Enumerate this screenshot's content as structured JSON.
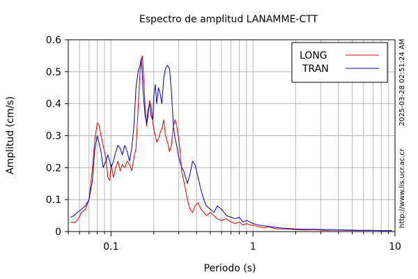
{
  "chart_data": {
    "type": "line",
    "title": "Espectro de amplitud LANAMME-CTT",
    "xlabel": "Periodo (s)",
    "ylabel": "Amplitud (cm/s)",
    "xscale": "log",
    "xlim": [
      0.05,
      10
    ],
    "ylim": [
      0,
      0.6
    ],
    "xticks": [
      0.1,
      1,
      10
    ],
    "xtick_labels": [
      "0.1",
      "1",
      "10"
    ],
    "yticks": [
      0,
      0.1,
      0.2,
      0.3,
      0.4,
      0.5,
      0.6
    ],
    "ytick_labels": [
      "0",
      "0.1",
      "0.2",
      "0.3",
      "0.4",
      "0.5",
      "0.6"
    ],
    "grid": true,
    "legend": "top-right",
    "series": [
      {
        "name": "LONG",
        "color": "#dd0000",
        "x": [
          0.052,
          0.055,
          0.058,
          0.062,
          0.066,
          0.07,
          0.074,
          0.077,
          0.08,
          0.082,
          0.085,
          0.088,
          0.092,
          0.095,
          0.098,
          0.1,
          0.104,
          0.108,
          0.112,
          0.116,
          0.12,
          0.125,
          0.13,
          0.135,
          0.14,
          0.145,
          0.15,
          0.155,
          0.16,
          0.163,
          0.166,
          0.168,
          0.171,
          0.174,
          0.178,
          0.182,
          0.187,
          0.192,
          0.197,
          0.2,
          0.205,
          0.21,
          0.216,
          0.222,
          0.228,
          0.235,
          0.242,
          0.25,
          0.258,
          0.266,
          0.275,
          0.283,
          0.29,
          0.297,
          0.305,
          0.315,
          0.325,
          0.335,
          0.345,
          0.36,
          0.375,
          0.39,
          0.41,
          0.43,
          0.45,
          0.47,
          0.5,
          0.53,
          0.56,
          0.6,
          0.65,
          0.7,
          0.75,
          0.8,
          0.85,
          0.9,
          0.95,
          1.0,
          1.1,
          1.2,
          1.3,
          1.4,
          1.5,
          1.7,
          2.0,
          2.3,
          2.7,
          3.2,
          3.8,
          4.5,
          5.5,
          6.5,
          8.0,
          9.5
        ],
        "y": [
          0.03,
          0.028,
          0.035,
          0.06,
          0.07,
          0.1,
          0.2,
          0.29,
          0.34,
          0.335,
          0.3,
          0.27,
          0.23,
          0.17,
          0.16,
          0.21,
          0.17,
          0.2,
          0.22,
          0.19,
          0.21,
          0.2,
          0.22,
          0.21,
          0.19,
          0.23,
          0.26,
          0.38,
          0.5,
          0.53,
          0.55,
          0.52,
          0.46,
          0.38,
          0.33,
          0.36,
          0.41,
          0.39,
          0.34,
          0.32,
          0.3,
          0.28,
          0.29,
          0.31,
          0.32,
          0.35,
          0.3,
          0.28,
          0.25,
          0.27,
          0.33,
          0.35,
          0.33,
          0.3,
          0.26,
          0.19,
          0.16,
          0.13,
          0.1,
          0.07,
          0.06,
          0.08,
          0.09,
          0.07,
          0.06,
          0.05,
          0.06,
          0.05,
          0.04,
          0.035,
          0.04,
          0.03,
          0.025,
          0.03,
          0.02,
          0.025,
          0.02,
          0.02,
          0.015,
          0.012,
          0.015,
          0.01,
          0.008,
          0.008,
          0.006,
          0.005,
          0.006,
          0.004,
          0.005,
          0.004,
          0.003,
          0.004,
          0.003,
          0.003
        ]
      },
      {
        "name": "TRAN",
        "color": "#0000cc",
        "x": [
          0.052,
          0.055,
          0.058,
          0.062,
          0.066,
          0.07,
          0.074,
          0.077,
          0.08,
          0.082,
          0.085,
          0.088,
          0.092,
          0.095,
          0.098,
          0.1,
          0.104,
          0.108,
          0.112,
          0.116,
          0.12,
          0.125,
          0.13,
          0.135,
          0.14,
          0.145,
          0.15,
          0.155,
          0.16,
          0.163,
          0.166,
          0.168,
          0.171,
          0.174,
          0.178,
          0.182,
          0.187,
          0.192,
          0.197,
          0.2,
          0.205,
          0.21,
          0.216,
          0.222,
          0.228,
          0.235,
          0.242,
          0.25,
          0.258,
          0.266,
          0.275,
          0.283,
          0.29,
          0.297,
          0.305,
          0.315,
          0.325,
          0.335,
          0.345,
          0.36,
          0.375,
          0.39,
          0.41,
          0.43,
          0.45,
          0.47,
          0.5,
          0.53,
          0.56,
          0.6,
          0.65,
          0.7,
          0.75,
          0.8,
          0.85,
          0.9,
          0.95,
          1.0,
          1.1,
          1.2,
          1.3,
          1.4,
          1.5,
          1.7,
          2.0,
          2.3,
          2.7,
          3.2,
          3.8,
          4.5,
          5.5,
          6.5,
          8.0,
          9.5
        ],
        "y": [
          0.045,
          0.05,
          0.06,
          0.07,
          0.08,
          0.1,
          0.16,
          0.26,
          0.3,
          0.28,
          0.25,
          0.2,
          0.22,
          0.24,
          0.22,
          0.2,
          0.22,
          0.25,
          0.27,
          0.26,
          0.24,
          0.27,
          0.25,
          0.22,
          0.26,
          0.33,
          0.45,
          0.5,
          0.52,
          0.54,
          0.5,
          0.44,
          0.4,
          0.36,
          0.34,
          0.38,
          0.4,
          0.36,
          0.35,
          0.42,
          0.46,
          0.4,
          0.45,
          0.43,
          0.4,
          0.48,
          0.51,
          0.52,
          0.51,
          0.44,
          0.33,
          0.29,
          0.27,
          0.24,
          0.22,
          0.2,
          0.19,
          0.17,
          0.15,
          0.18,
          0.22,
          0.21,
          0.17,
          0.13,
          0.1,
          0.08,
          0.07,
          0.06,
          0.08,
          0.07,
          0.05,
          0.045,
          0.04,
          0.045,
          0.03,
          0.035,
          0.03,
          0.025,
          0.02,
          0.018,
          0.016,
          0.014,
          0.012,
          0.01,
          0.008,
          0.007,
          0.007,
          0.006,
          0.005,
          0.005,
          0.004,
          0.004,
          0.003,
          0.003
        ]
      }
    ]
  },
  "side_labels": {
    "timestamp": "2025-03-28 02:51:24 AM",
    "url": "http://www.lis.ucr.ac.cr"
  }
}
